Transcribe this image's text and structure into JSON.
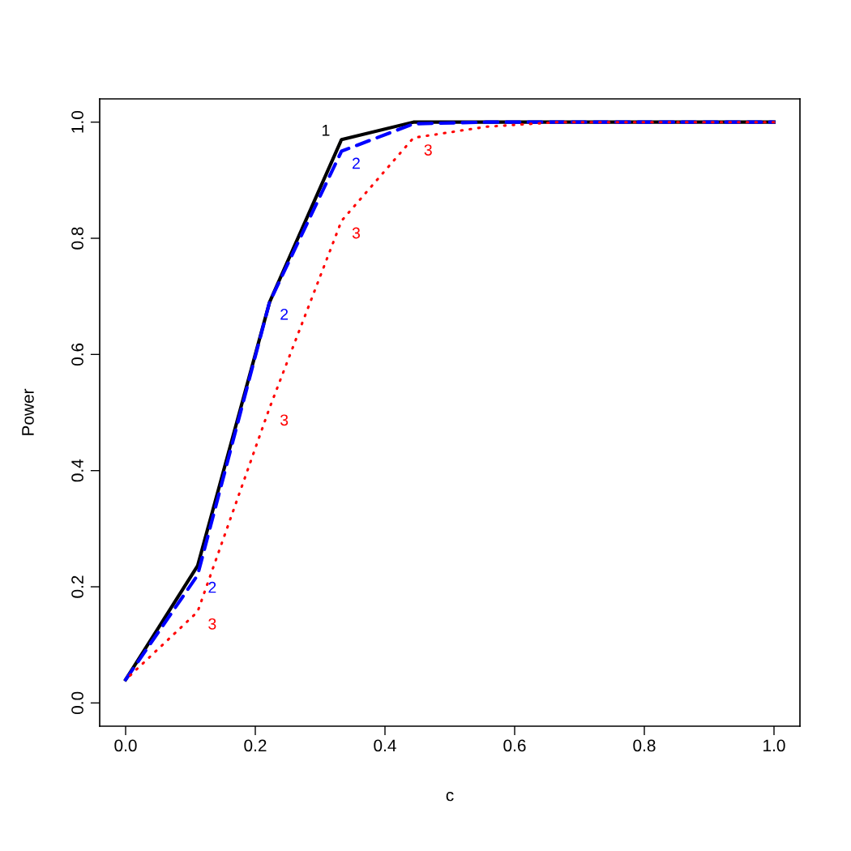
{
  "chart_data": {
    "type": "line",
    "xlabel": "c",
    "ylabel": "Power",
    "x": [
      0,
      0.111,
      0.222,
      0.333,
      0.444,
      0.556,
      0.667,
      0.778,
      0.889,
      1.0
    ],
    "series": [
      {
        "color": "#000000",
        "line_style": "solid",
        "values": [
          0.04,
          0.236,
          0.69,
          0.97,
          1.0,
          1.0,
          1.0,
          1.0,
          1.0,
          1.0
        ]
      },
      {
        "color": "#0000ff",
        "line_style": "dashed",
        "values": [
          0.04,
          0.22,
          0.69,
          0.95,
          0.997,
          1.0,
          1.0,
          1.0,
          1.0,
          1.0
        ]
      },
      {
        "color": "#ff0000",
        "line_style": "dotted",
        "values": [
          0.04,
          0.157,
          0.508,
          0.83,
          0.973,
          0.992,
          1.0,
          1.0,
          1.0,
          1.0
        ]
      }
    ],
    "annotations": [
      {
        "text": "1",
        "x": 0.333,
        "y": 0.97
      },
      {
        "text": "2",
        "x": 0.111,
        "y": 0.22
      },
      {
        "text": "2",
        "x": 0.222,
        "y": 0.69
      },
      {
        "text": "2",
        "x": 0.333,
        "y": 0.95
      },
      {
        "text": "3",
        "x": 0.111,
        "y": 0.157
      },
      {
        "text": "3",
        "x": 0.222,
        "y": 0.508
      },
      {
        "text": "3",
        "x": 0.333,
        "y": 0.83
      },
      {
        "text": "3",
        "x": 0.444,
        "y": 0.973
      }
    ],
    "xlim": [
      -0.04,
      1.04
    ],
    "ylim": [
      -0.04,
      1.04
    ],
    "xticks": [
      {
        "value": 0,
        "label": "0.0"
      },
      0.2,
      0.4,
      0.6,
      0.8,
      {
        "value": 1.0,
        "label": "1.0"
      }
    ],
    "yticks": [
      {
        "value": 0,
        "label": "0.0"
      },
      0.2,
      0.4,
      0.6,
      0.8,
      {
        "value": 1.0,
        "label": "1.0"
      }
    ],
    "grid": false,
    "legend": false,
    "marker": "none"
  }
}
